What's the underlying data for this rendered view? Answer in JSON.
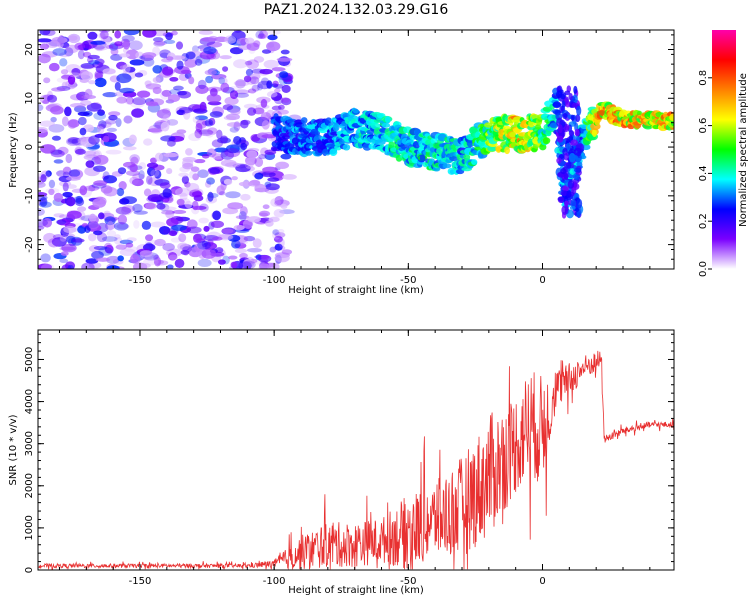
{
  "title": "PAZ1.2024.132.03.29.G16",
  "chart_data": [
    {
      "type": "heatmap",
      "xlabel": "Height of straight line (km)",
      "ylabel": "Frequency (Hz)",
      "xlim": [
        -188,
        49
      ],
      "ylim": [
        -25,
        24
      ],
      "x_ticks": [
        -150,
        -100,
        -50,
        0
      ],
      "y_ticks": [
        -20,
        -10,
        0,
        10,
        20
      ],
      "colorbar": {
        "label": "Normalized spectral amplitude",
        "range": [
          0,
          1
        ],
        "ticks": [
          0.0,
          0.2,
          0.4,
          0.6,
          0.8
        ],
        "colors": [
          "#ffffff",
          "#7a00ff",
          "#0000ff",
          "#00ffff",
          "#00ff00",
          "#ffff00",
          "#ff8000",
          "#ff0000",
          "#ff00aa"
        ]
      },
      "noise_region": {
        "x": [
          -188,
          -95
        ],
        "y": [
          -25,
          24
        ],
        "level": 0.25
      },
      "signal_track": [
        {
          "x": -100,
          "y": 3,
          "amp": 0.3
        },
        {
          "x": -90,
          "y": 2,
          "amp": 0.35
        },
        {
          "x": -80,
          "y": 2,
          "amp": 0.35
        },
        {
          "x": -70,
          "y": 4,
          "amp": 0.4
        },
        {
          "x": -60,
          "y": 3,
          "amp": 0.4
        },
        {
          "x": -50,
          "y": 0,
          "amp": 0.45
        },
        {
          "x": -40,
          "y": -1,
          "amp": 0.45
        },
        {
          "x": -30,
          "y": -2,
          "amp": 0.4
        },
        {
          "x": -20,
          "y": 3,
          "amp": 0.55
        },
        {
          "x": -10,
          "y": 2.5,
          "amp": 0.75
        },
        {
          "x": 0,
          "y": 3,
          "amp": 0.55
        },
        {
          "x": 5,
          "y": 8,
          "amp": 0.4
        },
        {
          "x": 8,
          "y": -10,
          "amp": 0.35
        },
        {
          "x": 15,
          "y": 1,
          "amp": 0.4
        },
        {
          "x": 22,
          "y": 8,
          "amp": 0.8
        },
        {
          "x": 30,
          "y": 5.5,
          "amp": 0.75
        },
        {
          "x": 40,
          "y": 5.5,
          "amp": 0.75
        },
        {
          "x": 49,
          "y": 5.5,
          "amp": 0.75
        }
      ]
    },
    {
      "type": "line",
      "xlabel": "Height of straight line (km)",
      "ylabel": "SNR (10 * v/v)",
      "xlim": [
        -188,
        49
      ],
      "ylim": [
        0,
        5700
      ],
      "x_ticks": [
        -150,
        -100,
        -50,
        0
      ],
      "y_ticks": [
        0,
        1000,
        2000,
        3000,
        4000,
        5000
      ],
      "series_color": "#e83030",
      "envelope": [
        {
          "x": -188,
          "base": 100,
          "spread": 80
        },
        {
          "x": -110,
          "base": 100,
          "spread": 80
        },
        {
          "x": -100,
          "base": 150,
          "spread": 150
        },
        {
          "x": -90,
          "base": 400,
          "spread": 700
        },
        {
          "x": -80,
          "base": 600,
          "spread": 900
        },
        {
          "x": -70,
          "base": 600,
          "spread": 900
        },
        {
          "x": -60,
          "base": 700,
          "spread": 900
        },
        {
          "x": -50,
          "base": 900,
          "spread": 1500
        },
        {
          "x": -40,
          "base": 1200,
          "spread": 1500
        },
        {
          "x": -30,
          "base": 1500,
          "spread": 2000
        },
        {
          "x": -20,
          "base": 2200,
          "spread": 2400
        },
        {
          "x": -10,
          "base": 3000,
          "spread": 2000
        },
        {
          "x": -5,
          "base": 3500,
          "spread": 2200
        },
        {
          "x": 0,
          "base": 3300,
          "spread": 2200
        },
        {
          "x": 5,
          "base": 4300,
          "spread": 800
        },
        {
          "x": 10,
          "base": 4500,
          "spread": 700
        },
        {
          "x": 15,
          "base": 4800,
          "spread": 500
        },
        {
          "x": 22,
          "base": 5000,
          "spread": 400
        },
        {
          "x": 23,
          "base": 3100,
          "spread": 150
        },
        {
          "x": 30,
          "base": 3300,
          "spread": 150
        },
        {
          "x": 40,
          "base": 3450,
          "spread": 120
        },
        {
          "x": 49,
          "base": 3450,
          "spread": 120
        }
      ]
    }
  ]
}
